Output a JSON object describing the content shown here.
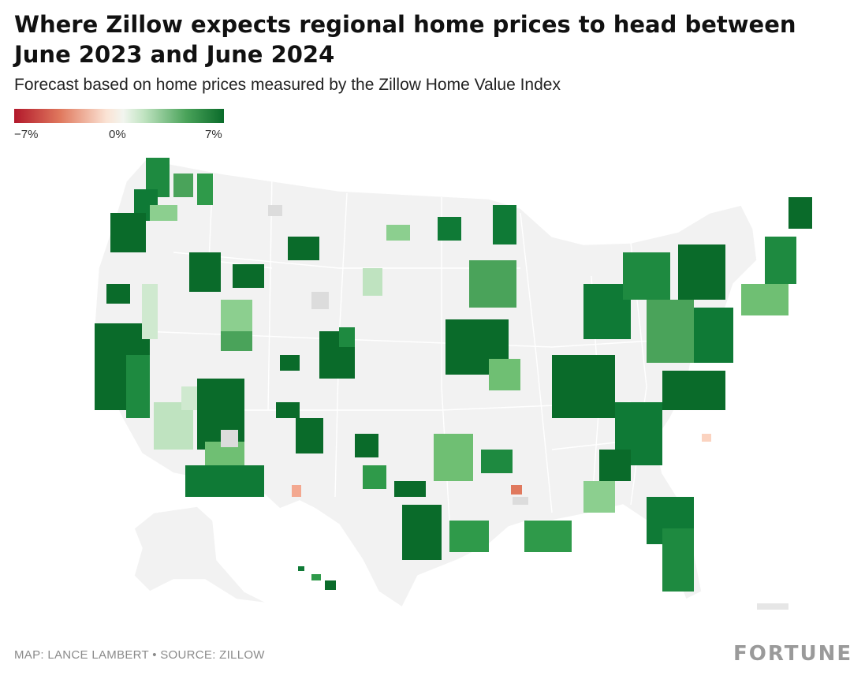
{
  "header": {
    "title": "Where Zillow expects regional home prices to head between June 2023 and June 2024",
    "subtitle": "Forecast based on home prices measured by the Zillow Home Value Index"
  },
  "legend": {
    "min_label": "−7%",
    "mid_label": "0%",
    "max_label": "7%",
    "colors": [
      "#b2182b",
      "#e0795e",
      "#fbe3d4",
      "#f2f5ef",
      "#bfe3c0",
      "#4aa35a",
      "#0a6b2a"
    ]
  },
  "footer": {
    "credit": "MAP: LANCE LAMBERT • SOURCE: ZILLOW",
    "brand": "FORTUNE"
  },
  "map": {
    "land_color": "#f2f2f2",
    "no_data_color": "#dcdcdc"
  }
}
